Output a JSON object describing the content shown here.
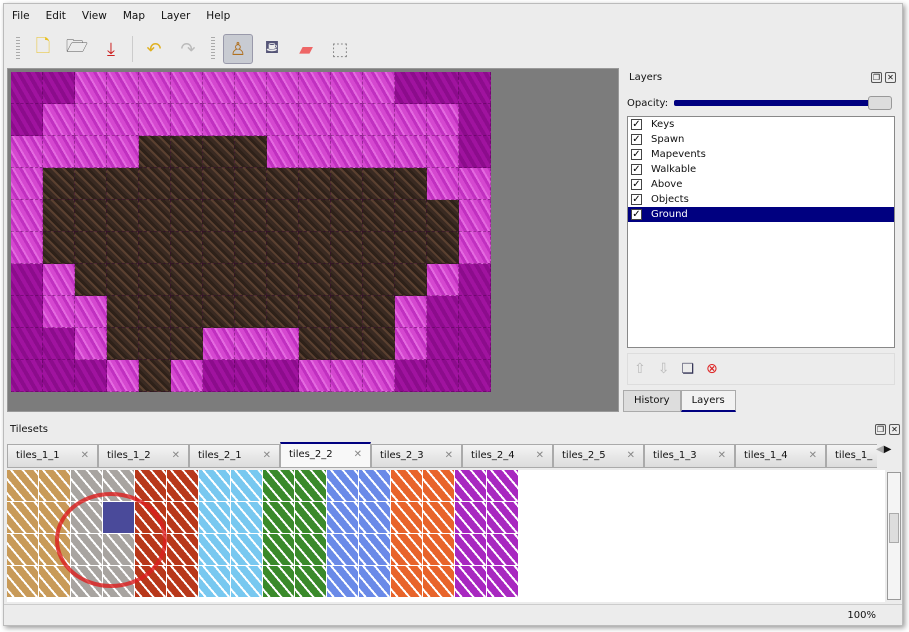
{
  "menu": [
    "File",
    "Edit",
    "View",
    "Map",
    "Layer",
    "Help"
  ],
  "toolbar": [
    {
      "name": "new-icon",
      "glyph": "🗋"
    },
    {
      "name": "open-icon",
      "glyph": "🗁"
    },
    {
      "name": "save-icon",
      "glyph": "⤓"
    },
    {
      "name": "undo-icon",
      "glyph": "↶"
    },
    {
      "name": "redo-icon",
      "glyph": "↷"
    },
    {
      "name": "stamp-brush-icon",
      "glyph": "♙",
      "active": true
    },
    {
      "name": "bucket-fill-icon",
      "glyph": "⛾"
    },
    {
      "name": "eraser-icon",
      "glyph": "▰"
    },
    {
      "name": "rect-select-icon",
      "glyph": "⬚"
    }
  ],
  "map": {
    "tiles": [
      "MMPPPPPPPPPPMMM",
      "MPPPPPPPPPPPPPM",
      "PPPPDDDDPPPPPPM",
      "PDDDDDDDDDDDDPP",
      "PDDDDDDDDDDDDDP",
      "PDDDDDDDDDDDDDP",
      "MPDDDDDDDDDDDPM",
      "MPPDDDDDDDDDPMM",
      "MMPDDDPPPDDDPMM",
      "MMMPDPMMMPPPMMM"
    ]
  },
  "layers_panel": {
    "title": "Layers",
    "opacity_label": "Opacity:",
    "opacity": 1.0,
    "layers": [
      {
        "name": "Keys",
        "visible": true
      },
      {
        "name": "Spawn",
        "visible": true
      },
      {
        "name": "Mapevents",
        "visible": true
      },
      {
        "name": "Walkable",
        "visible": true
      },
      {
        "name": "Above",
        "visible": true
      },
      {
        "name": "Objects",
        "visible": true
      },
      {
        "name": "Ground",
        "visible": true,
        "selected": true
      }
    ],
    "tabs": [
      "History",
      "Layers"
    ],
    "active_tab": "Layers"
  },
  "tilesets": {
    "title": "Tilesets",
    "tabs": [
      "tiles_1_1",
      "tiles_1_2",
      "tiles_2_1",
      "tiles_2_2",
      "tiles_2_3",
      "tiles_2_4",
      "tiles_2_5",
      "tiles_1_3",
      "tiles_1_4",
      "tiles_1_"
    ],
    "active_tab": "tiles_2_2",
    "column_colors": [
      "#c89a58",
      "#c89a58",
      "#a8a4a0",
      "#a8a4a0",
      "#b8381a",
      "#b8381a",
      "#78c8f0",
      "#78c8f0",
      "#3a8a2a",
      "#3a8a2a",
      "#6a8ae8",
      "#6a8ae8",
      "#e8642a",
      "#e8642a",
      "#a828c0",
      "#a828c0"
    ]
  },
  "status": {
    "zoom": "100%"
  }
}
